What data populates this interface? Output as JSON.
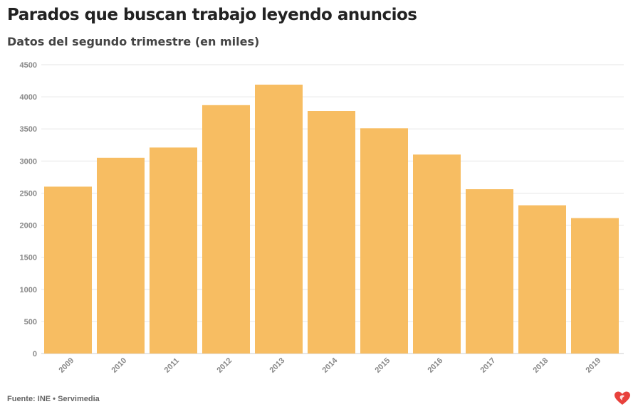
{
  "header": {
    "title": "Parados que buscan trabajo leyendo anuncios",
    "subtitle": "Datos del segundo trimestre (en miles)"
  },
  "footer": {
    "source": "Fuente: INE • Servimedia"
  },
  "colors": {
    "bar": "#f7bd62",
    "grid": "#e6e6e6",
    "axis_text": "#888888",
    "logo": "#e8413c"
  },
  "logo_icon": "servimedia-heart-logo",
  "chart_data": {
    "type": "bar",
    "categories": [
      "2009",
      "2010",
      "2011",
      "2012",
      "2013",
      "2014",
      "2015",
      "2016",
      "2017",
      "2018",
      "2019"
    ],
    "values": [
      2600,
      3050,
      3210,
      3870,
      4190,
      3780,
      3510,
      3100,
      2560,
      2310,
      2110
    ],
    "ylim": [
      0,
      4500
    ],
    "yticks": [
      0,
      500,
      1000,
      1500,
      2000,
      2500,
      3000,
      3500,
      4000,
      4500
    ],
    "grid": true,
    "xlabel": "",
    "ylabel": ""
  }
}
